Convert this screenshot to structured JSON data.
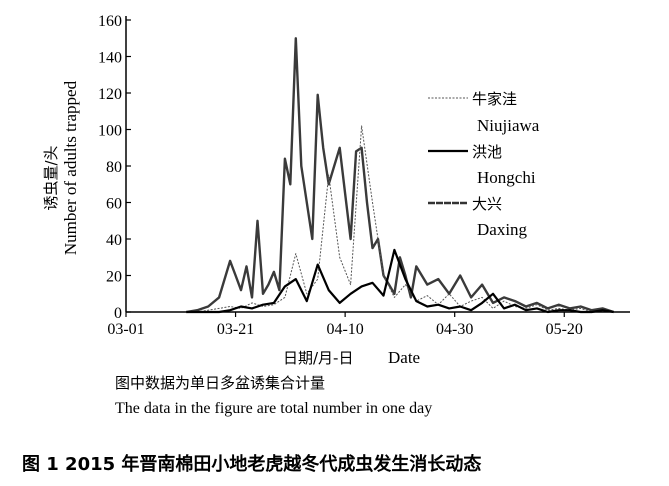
{
  "chart_data": {
    "type": "line",
    "ylabel_cn": "诱虫量/头",
    "ylabel_en": "Number of adults trapped",
    "xlabel_cn": "日期/月-日",
    "xlabel_en": "Date",
    "ylim": [
      0,
      160
    ],
    "yticks": [
      "0",
      "20",
      "40",
      "60",
      "80",
      "100",
      "120",
      "140",
      "160"
    ],
    "xlim": [
      "03-01",
      "06-01"
    ],
    "xticks": [
      "03-01",
      "03-21",
      "04-10",
      "04-30",
      "05-20"
    ],
    "legend_position": "right",
    "series": [
      {
        "name_cn": "牛家洼",
        "name_en": "Niujiawa",
        "line_style": "dotted-thin",
        "x": [
          "03-12",
          "03-14",
          "03-16",
          "03-18",
          "03-20",
          "03-22",
          "03-24",
          "03-26",
          "03-28",
          "03-30",
          "04-01",
          "04-03",
          "04-05",
          "04-07",
          "04-09",
          "04-11",
          "04-13",
          "04-15",
          "04-17",
          "04-19",
          "04-21",
          "04-23",
          "04-25",
          "04-27",
          "04-29",
          "05-01",
          "05-03",
          "05-05",
          "05-07",
          "05-09",
          "05-11",
          "05-13",
          "05-15",
          "05-17",
          "05-19",
          "05-21",
          "05-23",
          "05-25",
          "05-27",
          "05-29"
        ],
        "values": [
          0,
          0,
          1,
          2,
          3,
          2,
          5,
          3,
          4,
          8,
          32,
          10,
          18,
          75,
          30,
          15,
          102,
          60,
          20,
          8,
          15,
          6,
          9,
          4,
          10,
          3,
          6,
          8,
          2,
          6,
          3,
          2,
          4,
          1,
          2,
          1,
          2,
          0,
          1,
          0
        ]
      },
      {
        "name_cn": "洪池",
        "name_en": "Hongchi",
        "line_style": "solid-thick",
        "x": [
          "03-12",
          "03-14",
          "03-16",
          "03-18",
          "03-20",
          "03-22",
          "03-24",
          "03-26",
          "03-28",
          "03-30",
          "04-01",
          "04-03",
          "04-05",
          "04-07",
          "04-09",
          "04-11",
          "04-13",
          "04-15",
          "04-17",
          "04-19",
          "04-21",
          "04-23",
          "04-25",
          "04-27",
          "04-29",
          "05-01",
          "05-03",
          "05-05",
          "05-07",
          "05-09",
          "05-11",
          "05-13",
          "05-15",
          "05-17",
          "05-19",
          "05-21",
          "05-23",
          "05-25",
          "05-27",
          "05-29"
        ],
        "values": [
          0,
          0,
          0,
          0,
          1,
          3,
          2,
          4,
          5,
          14,
          18,
          6,
          26,
          12,
          5,
          10,
          14,
          16,
          9,
          34,
          18,
          6,
          3,
          4,
          2,
          3,
          1,
          5,
          10,
          2,
          4,
          1,
          2,
          0,
          1,
          1,
          0,
          0,
          1,
          0
        ]
      },
      {
        "name_cn": "大兴",
        "name_en": "Daxing",
        "line_style": "solid-grey-thick",
        "x": [
          "03-12",
          "03-14",
          "03-16",
          "03-18",
          "03-20",
          "03-21",
          "03-22",
          "03-23",
          "03-24",
          "03-25",
          "03-26",
          "03-27",
          "03-28",
          "03-29",
          "03-30",
          "03-31",
          "04-01",
          "04-02",
          "04-03",
          "04-04",
          "04-05",
          "04-06",
          "04-07",
          "04-08",
          "04-09",
          "04-10",
          "04-11",
          "04-12",
          "04-13",
          "04-14",
          "04-15",
          "04-16",
          "04-17",
          "04-18",
          "04-19",
          "04-20",
          "04-21",
          "04-22",
          "04-23",
          "04-25",
          "04-27",
          "04-29",
          "05-01",
          "05-03",
          "05-05",
          "05-07",
          "05-09",
          "05-11",
          "05-13",
          "05-15",
          "05-17",
          "05-19",
          "05-21",
          "05-23",
          "05-25",
          "05-27",
          "05-29"
        ],
        "values": [
          0,
          1,
          3,
          8,
          28,
          20,
          12,
          25,
          8,
          50,
          10,
          15,
          22,
          12,
          84,
          70,
          150,
          80,
          60,
          40,
          119,
          90,
          70,
          80,
          90,
          65,
          40,
          88,
          90,
          60,
          35,
          40,
          20,
          15,
          10,
          30,
          20,
          8,
          25,
          15,
          18,
          10,
          20,
          8,
          15,
          5,
          8,
          6,
          3,
          5,
          2,
          4,
          2,
          3,
          1,
          2,
          0
        ]
      }
    ]
  },
  "note": {
    "cn": "图中数据为单日多盆诱集合计量",
    "en": "The data in the figure are total number in one day"
  },
  "caption": "图 1   2015 年晋南棉田小地老虎越冬代成虫发生消长动态"
}
